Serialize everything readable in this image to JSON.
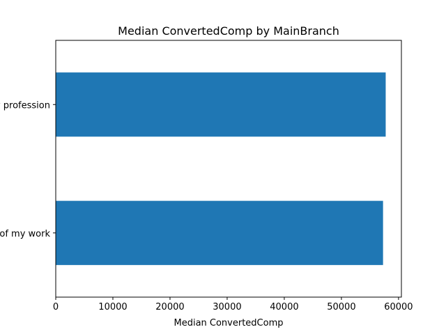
{
  "chart_data": {
    "type": "bar",
    "orientation": "horizontal",
    "title": "Median ConvertedComp by MainBranch",
    "xlabel": "Median ConvertedComp",
    "ylabel": "",
    "categories": [
      "I am a developer by profession",
      "I am not primarily a developer, but I write code sometimes as part of my work"
    ],
    "values": [
      57750,
      57287
    ],
    "xlim": [
      0,
      60500
    ],
    "xticks": [
      0,
      10000,
      20000,
      30000,
      40000,
      50000,
      60000
    ],
    "grid": false,
    "legend": "none",
    "colors": {
      "bar": "#1f77b4"
    }
  }
}
